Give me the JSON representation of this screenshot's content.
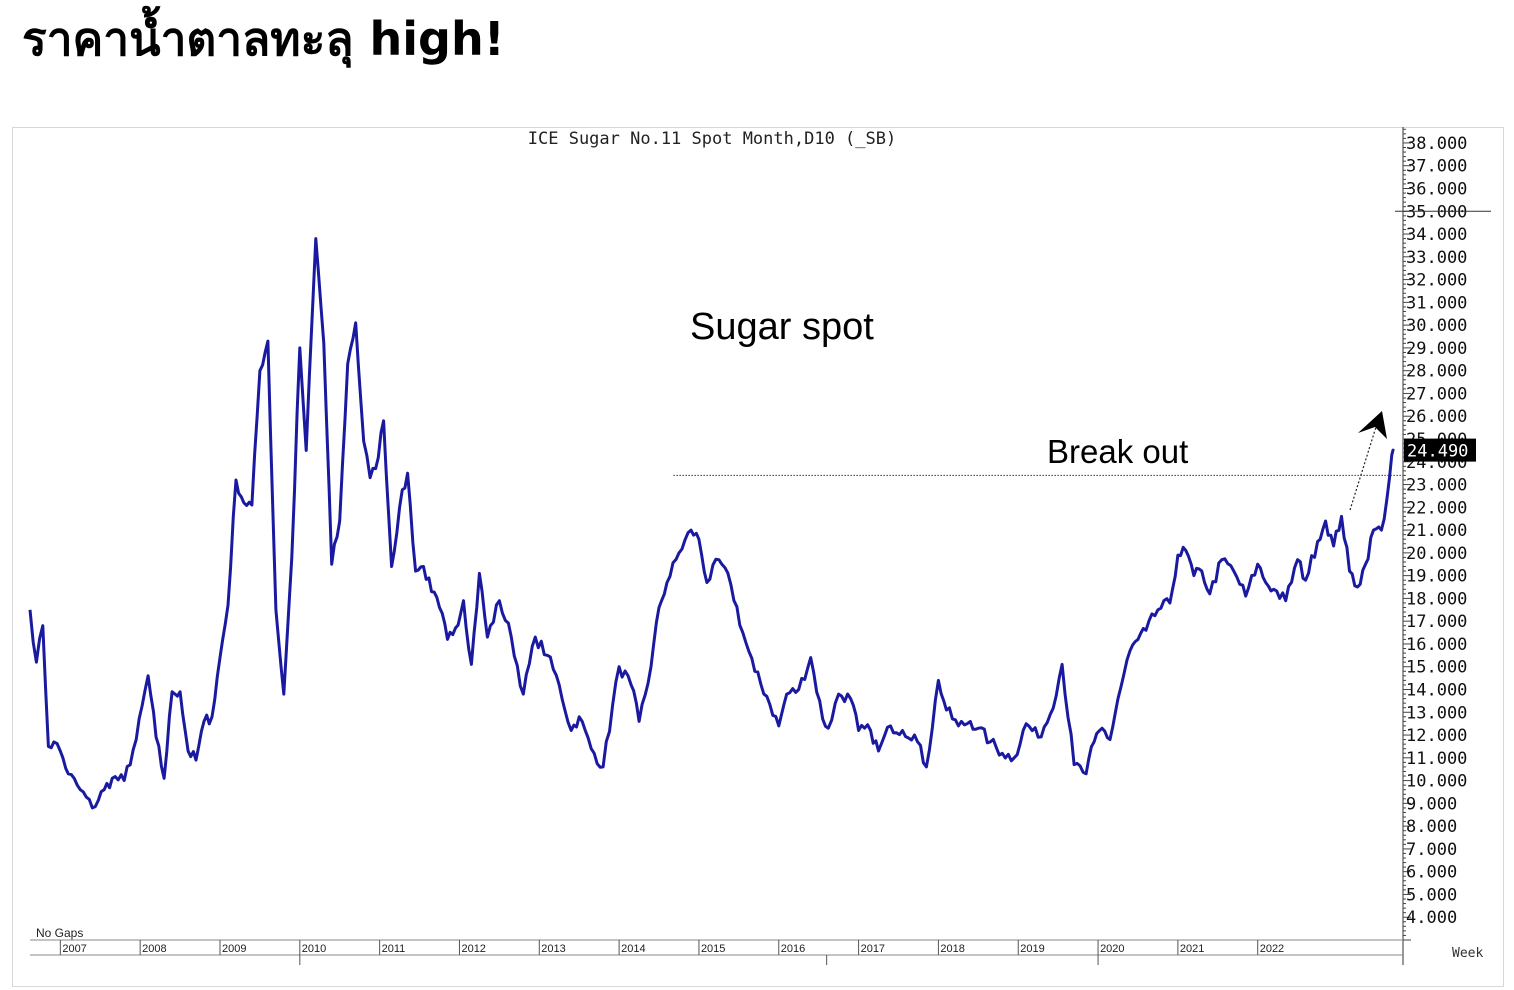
{
  "headline": "ราคาน้ำตาลทะลุ high!",
  "chart_data": {
    "type": "line",
    "title": "ICE Sugar No.11 Spot Month,D10 (_SB)",
    "series_color": "#1a1aa0",
    "annotations": {
      "label_main": "Sugar spot",
      "label_breakout": "Break out",
      "breakout_level": 23.4,
      "no_gaps_label": "No Gaps",
      "week_label": "Week",
      "last_price_label": "24.490",
      "last_price": 24.49
    },
    "ylim": [
      3.0,
      38.7
    ],
    "y_ticks": [
      38,
      37,
      36,
      35,
      34,
      33,
      32,
      31,
      30,
      29,
      28,
      27,
      26,
      25,
      24,
      23,
      22,
      21,
      20,
      19,
      18,
      17,
      16,
      15,
      14,
      13,
      12,
      11,
      10,
      9,
      8,
      7,
      6,
      5,
      4
    ],
    "y_tick_labels": [
      "38.000",
      "37.000",
      "36.000",
      "35.000",
      "34.000",
      "33.000",
      "32.000",
      "31.000",
      "30.000",
      "29.000",
      "28.000",
      "27.000",
      "26.000",
      "25.000",
      "24.000",
      "23.000",
      "22.000",
      "21.000",
      "20.000",
      "19.000",
      "18.000",
      "17.000",
      "16.000",
      "15.000",
      "14.000",
      "13.000",
      "12.000",
      "11.000",
      "10.000",
      "9.000",
      "8.000",
      "7.000",
      "6.000",
      "5.000",
      "4.000"
    ],
    "x_labels": [
      "2007",
      "2008",
      "2009",
      "2010",
      "2011",
      "2012",
      "2013",
      "2014",
      "2015",
      "2016",
      "2017",
      "2018",
      "2019",
      "2020",
      "2021",
      "2022"
    ],
    "xlim": [
      2006.62,
      2023.82
    ],
    "x": [
      2006.62,
      2006.7,
      2006.78,
      2006.85,
      2006.92,
      2007.0,
      2007.1,
      2007.25,
      2007.4,
      2007.55,
      2007.65,
      2007.8,
      2007.95,
      2008.1,
      2008.2,
      2008.3,
      2008.4,
      2008.5,
      2008.6,
      2008.7,
      2008.8,
      2008.9,
      2009.0,
      2009.1,
      2009.2,
      2009.3,
      2009.4,
      2009.5,
      2009.6,
      2009.7,
      2009.8,
      2009.9,
      2010.0,
      2010.08,
      2010.2,
      2010.3,
      2010.4,
      2010.5,
      2010.6,
      2010.7,
      2010.8,
      2010.88,
      2010.95,
      2011.05,
      2011.15,
      2011.25,
      2011.35,
      2011.45,
      2011.55,
      2011.65,
      2011.75,
      2011.85,
      2011.95,
      2012.05,
      2012.15,
      2012.25,
      2012.35,
      2012.5,
      2012.65,
      2012.8,
      2012.95,
      2013.1,
      2013.25,
      2013.4,
      2013.5,
      2013.65,
      2013.8,
      2014.0,
      2014.15,
      2014.25,
      2014.4,
      2014.5,
      2014.6,
      2014.75,
      2014.9,
      2015.0,
      2015.1,
      2015.25,
      2015.4,
      2015.55,
      2015.7,
      2015.85,
      2016.0,
      2016.1,
      2016.25,
      2016.4,
      2016.55,
      2016.62,
      2016.75,
      2016.9,
      2017.0,
      2017.15,
      2017.25,
      2017.4,
      2017.55,
      2017.7,
      2017.85,
      2018.0,
      2018.1,
      2018.25,
      2018.4,
      2018.5,
      2018.65,
      2018.8,
      2018.95,
      2019.1,
      2019.25,
      2019.4,
      2019.55,
      2019.7,
      2019.85,
      2019.95,
      2020.05,
      2020.15,
      2020.25,
      2020.4,
      2020.5,
      2020.6,
      2020.75,
      2020.9,
      2021.0,
      2021.1,
      2021.2,
      2021.3,
      2021.4,
      2021.55,
      2021.7,
      2021.85,
      2022.0,
      2022.1,
      2022.2,
      2022.35,
      2022.5,
      2022.6,
      2022.75,
      2022.85,
      2022.95,
      2023.05,
      2023.15,
      2023.25,
      2023.35,
      2023.45,
      2023.55,
      2023.62,
      2023.68,
      2023.71
    ],
    "y": [
      17.5,
      15.2,
      16.8,
      11.5,
      11.7,
      11.3,
      10.3,
      9.6,
      8.8,
      9.6,
      10.1,
      10.0,
      11.8,
      14.6,
      11.9,
      10.1,
      13.9,
      13.9,
      11.3,
      10.9,
      12.6,
      12.8,
      15.4,
      17.7,
      23.2,
      22.2,
      22.1,
      28.0,
      29.3,
      17.5,
      13.8,
      19.8,
      29.0,
      24.5,
      33.8,
      29.2,
      19.5,
      21.4,
      28.3,
      30.1,
      24.9,
      23.3,
      23.7,
      25.8,
      19.4,
      22.0,
      23.5,
      19.2,
      19.4,
      18.3,
      17.6,
      16.2,
      16.7,
      17.9,
      15.1,
      19.1,
      16.3,
      17.9,
      16.3,
      13.8,
      16.3,
      15.5,
      14.2,
      12.2,
      12.8,
      11.4,
      10.6,
      15.0,
      14.2,
      12.6,
      15.0,
      17.6,
      18.7,
      20.0,
      21.0,
      20.6,
      18.7,
      19.7,
      18.6,
      16.5,
      14.8,
      13.7,
      12.4,
      13.8,
      14.0,
      15.4,
      12.7,
      12.3,
      13.8,
      13.6,
      12.2,
      12.2,
      11.3,
      12.4,
      12.2,
      12.0,
      10.6,
      14.4,
      13.1,
      12.4,
      12.6,
      12.3,
      11.7,
      11.2,
      11.0,
      12.5,
      11.9,
      12.9,
      15.1,
      10.7,
      10.3,
      11.7,
      12.3,
      11.8,
      13.6,
      15.7,
      16.2,
      16.6,
      17.5,
      17.8,
      19.9,
      20.1,
      19.0,
      19.2,
      18.2,
      19.7,
      19.2,
      18.1,
      19.5,
      18.7,
      18.4,
      17.9,
      19.7,
      18.8,
      20.5,
      21.4,
      20.3,
      21.6,
      19.2,
      18.5,
      19.5,
      21.0,
      21.0,
      22.4,
      24.3,
      24.49
    ]
  }
}
